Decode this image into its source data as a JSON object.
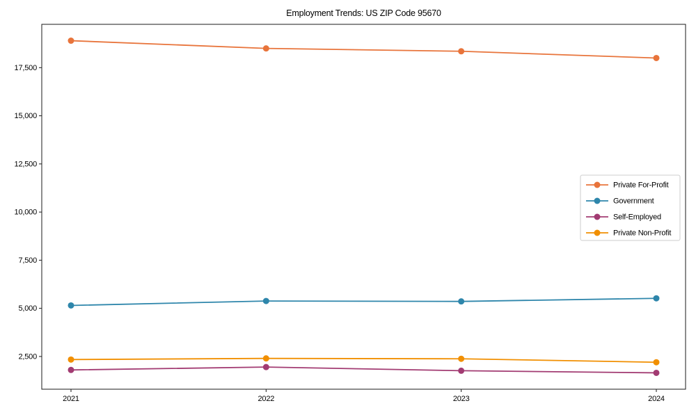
{
  "page": {
    "background": "#ffffff"
  },
  "chart_data": {
    "type": "line",
    "title": "Employment Trends: US ZIP Code 95670",
    "categories": [
      "2021",
      "2022",
      "2023",
      "2024"
    ],
    "series": [
      {
        "name": "Private For-Profit",
        "color": "#E8743B",
        "values": [
          18900,
          18500,
          18350,
          18000
        ]
      },
      {
        "name": "Government",
        "color": "#2E86AB",
        "values": [
          5150,
          5380,
          5360,
          5520
        ]
      },
      {
        "name": "Self-Employed",
        "color": "#A23B72",
        "values": [
          1800,
          1950,
          1760,
          1650
        ]
      },
      {
        "name": "Private Non-Profit",
        "color": "#F18F01",
        "values": [
          2340,
          2400,
          2380,
          2200
        ]
      }
    ],
    "xlabel": "",
    "ylabel": "",
    "ylim": [
      800,
      19750
    ],
    "y_ticks": [
      2500,
      5000,
      7500,
      10000,
      12500,
      15000,
      17500
    ],
    "grid": false,
    "legend": {
      "position": "center-right",
      "framed": true
    },
    "marker": "circle",
    "axis_color": "#1a1a1a",
    "text_color": "#000000",
    "legend_border_color": "#cccccc"
  }
}
